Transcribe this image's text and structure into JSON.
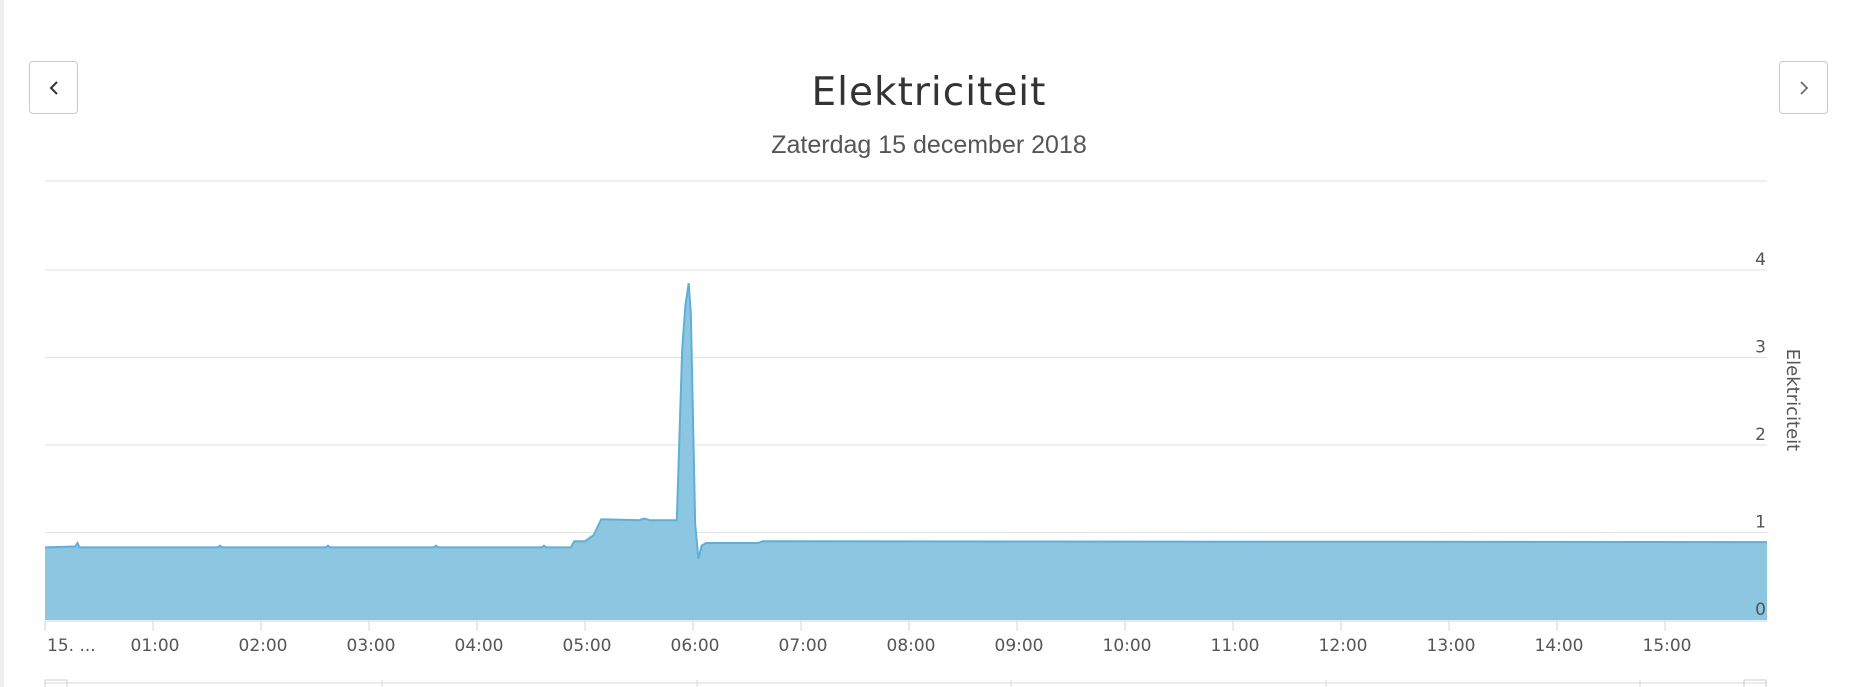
{
  "header": {
    "title": "Elektriciteit",
    "subtitle": "Zaterdag 15 december 2018"
  },
  "navigation": {
    "prev_icon": "chevron-left-icon",
    "next_icon": "chevron-right-icon"
  },
  "colors": {
    "series_fill": "#8cc6e1",
    "series_line": "#5fb0d6",
    "grid": "#e2e2e2",
    "text": "#555555"
  },
  "chart_data": {
    "type": "area",
    "title": "Elektriciteit",
    "subtitle": "Zaterdag 15 december 2018",
    "ylabel": "Elektriciteit",
    "y_axis_position": "right",
    "ylim": [
      0,
      5
    ],
    "yticks": [
      0,
      1,
      2,
      3,
      4
    ],
    "x_unit": "hour",
    "xlim": [
      0,
      16.1
    ],
    "x_tick_labels": [
      "15. ...",
      "01:00",
      "02:00",
      "03:00",
      "04:00",
      "05:00",
      "06:00",
      "07:00",
      "08:00",
      "09:00",
      "10:00",
      "11:00",
      "12:00",
      "13:00",
      "14:00",
      "15:00"
    ],
    "x_tick_values": [
      0,
      1,
      2,
      3,
      4,
      5,
      6,
      7,
      8,
      9,
      10,
      11,
      12,
      13,
      14,
      15
    ],
    "grid": true,
    "legend": "none",
    "series": [
      {
        "x": [
          0,
          0.28,
          0.3,
          0.32,
          1.6,
          1.62,
          1.64,
          2.6,
          2.62,
          2.64,
          3.6,
          3.62,
          3.64,
          4.6,
          4.62,
          4.64,
          4.87,
          4.9,
          5.0,
          5.08,
          5.15,
          5.2,
          5.5,
          5.55,
          5.6,
          5.85,
          5.9,
          5.93,
          5.96,
          5.98,
          6.02,
          6.05,
          6.08,
          6.12,
          6.5,
          6.6,
          6.65,
          16.1
        ],
        "y": [
          0.83,
          0.84,
          0.88,
          0.83,
          0.83,
          0.85,
          0.83,
          0.83,
          0.85,
          0.83,
          0.83,
          0.85,
          0.83,
          0.83,
          0.85,
          0.83,
          0.83,
          0.9,
          0.9,
          0.97,
          1.15,
          1.15,
          1.14,
          1.16,
          1.14,
          1.14,
          3.1,
          3.6,
          3.85,
          3.5,
          1.1,
          0.7,
          0.85,
          0.88,
          0.88,
          0.88,
          0.9,
          0.89
        ]
      }
    ]
  }
}
